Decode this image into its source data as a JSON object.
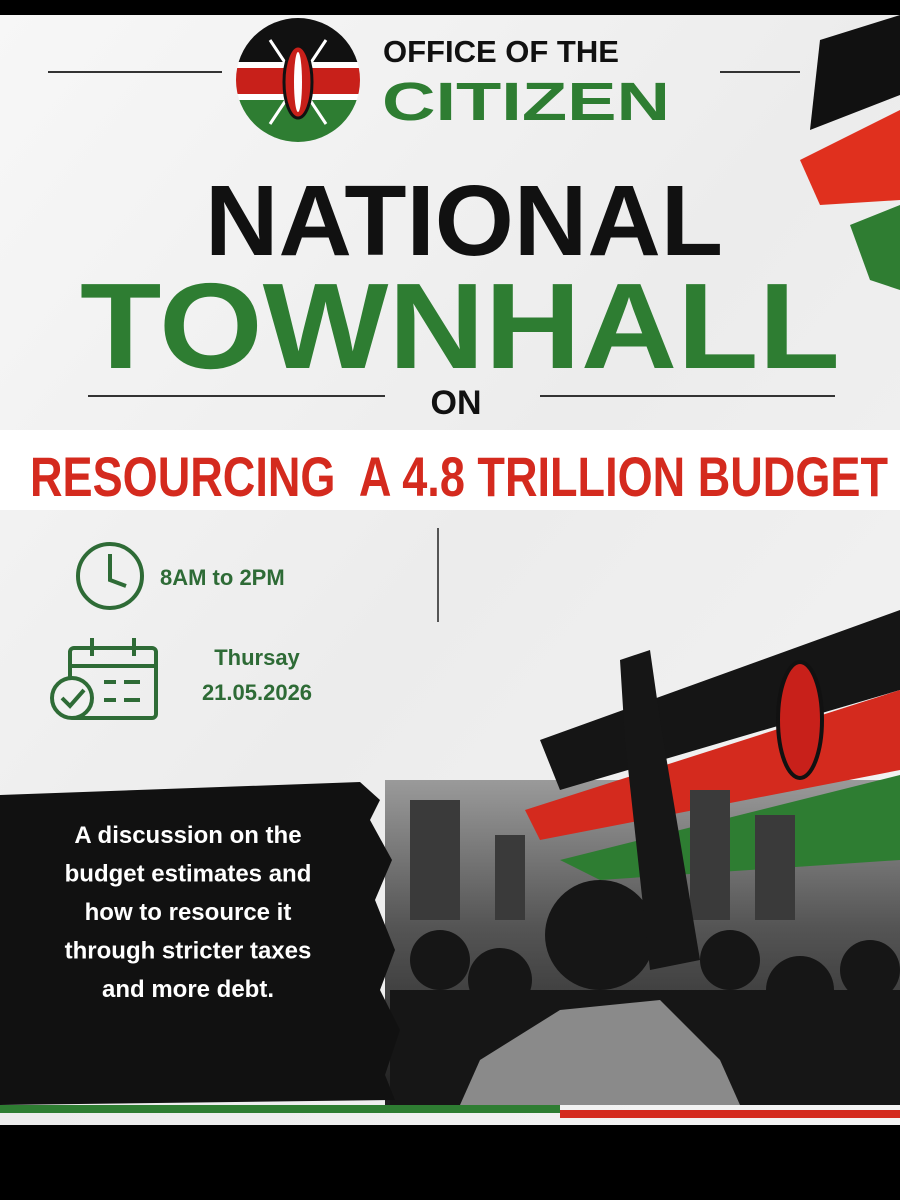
{
  "header": {
    "org_line1": "OFFICE OF THE",
    "org_line2": "CITIZEN"
  },
  "title": {
    "line1": "NATIONAL",
    "line2": "TOWNHALL",
    "connector": "ON"
  },
  "subtitle": "RESOURCING  A 4.8 TRILLION BUDGET",
  "schedule": {
    "time": "8AM to 2PM",
    "day": "Thursay",
    "date": "21.05.2026"
  },
  "description": {
    "lines": [
      "A discussion on the",
      "budget estimates and",
      "how to resource it",
      "through stricter taxes",
      "and more debt."
    ]
  }
}
